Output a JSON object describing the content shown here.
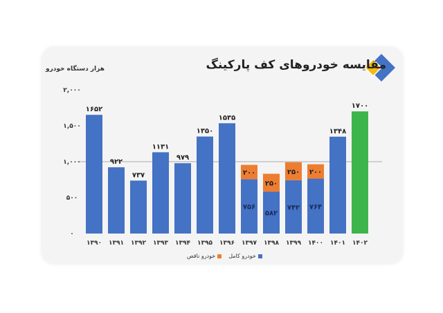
{
  "chart_data": {
    "type": "bar",
    "stacked": true,
    "title": "مقایسه خودروهای کف پارکینگ",
    "ylabel": "هزار دستگاه خودرو",
    "ylim": [
      0,
      2000
    ],
    "yticks": [
      0,
      500,
      1000,
      1500,
      2000
    ],
    "ytick_labels": [
      "۰",
      "۵۰۰",
      "۱,۰۰۰",
      "۱,۵۰۰",
      "۲,۰۰۰"
    ],
    "grid": "horizontal at 1000",
    "legend_position": "bottom",
    "categories": [
      "۱۳۹۰",
      "۱۳۹۱",
      "۱۳۹۲",
      "۱۳۹۳",
      "۱۳۹۴",
      "۱۳۹۵",
      "۱۳۹۶",
      "۱۳۹۷",
      "۱۳۹۸",
      "۱۳۹۹",
      "۱۴۰۰",
      "۱۴۰۱",
      "۱۴۰۲"
    ],
    "series": [
      {
        "name": "خودرو کامل",
        "color": "#4472c4",
        "values": [
          1652,
          922,
          737,
          1131,
          979,
          1350,
          1535,
          756,
          582,
          742,
          764,
          1348,
          1700
        ],
        "labels": [
          "۱۶۵۲",
          "۹۲۲",
          "۷۳۷",
          "۱۱۳۱",
          "۹۷۹",
          "۱۳۵۰",
          "۱۵۳۵",
          "۷۵۶",
          "۵۸۲",
          "۷۴۲",
          "۷۶۴",
          "۱۳۴۸",
          "۱۷۰۰"
        ]
      },
      {
        "name": "خودرو ناقص",
        "color": "#ed7d31",
        "values": [
          0,
          0,
          0,
          0,
          0,
          0,
          0,
          200,
          250,
          250,
          200,
          0,
          0
        ],
        "labels": [
          "",
          "",
          "",
          "",
          "",
          "",
          "",
          "۲۰۰",
          "۲۵۰",
          "۲۵۰",
          "۲۰۰",
          "",
          ""
        ]
      }
    ],
    "highlight": {
      "category": "۱۴۰۲",
      "color": "#3cb54a"
    }
  }
}
